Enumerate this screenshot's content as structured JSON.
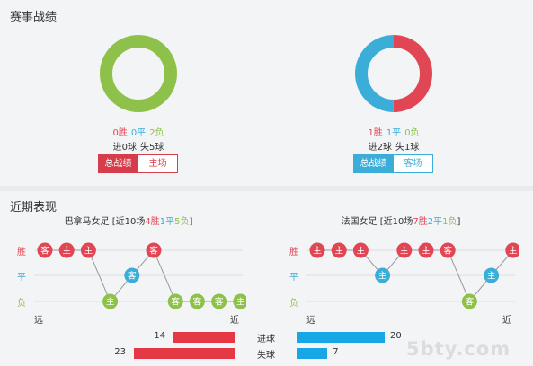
{
  "colors": {
    "win": "#e04654",
    "draw": "#3aadd9",
    "loss": "#8dc149",
    "bar_red": "#e63744",
    "bar_blue": "#18a7e6"
  },
  "record": {
    "title": "赛事战绩",
    "left": {
      "win": "0胜",
      "draw": "0平",
      "loss": "2负",
      "goals_for": "进0球",
      "goals_against": "失5球",
      "tab_all": "总战绩",
      "tab_home": "主场",
      "donut": [
        {
          "label": "胜",
          "value": 0
        },
        {
          "label": "平",
          "value": 0
        },
        {
          "label": "负",
          "value": 2
        }
      ]
    },
    "right": {
      "win": "1胜",
      "draw": "1平",
      "loss": "0负",
      "goals_for": "进2球",
      "goals_against": "失1球",
      "tab_all": "总战绩",
      "tab_away": "客场",
      "donut": [
        {
          "label": "胜",
          "value": 1
        },
        {
          "label": "平",
          "value": 1
        },
        {
          "label": "负",
          "value": 0
        }
      ]
    }
  },
  "recent": {
    "title": "近期表现",
    "row_labels": {
      "win": "胜",
      "draw": "平",
      "loss": "负"
    },
    "axis": {
      "far": "远",
      "near": "近"
    },
    "left": {
      "team": "巴拿马女足",
      "prefix": "[近10场",
      "w": "4胜",
      "d": "1平",
      "l": "5负",
      "suffix": "]",
      "results": [
        {
          "r": "W",
          "v": "客"
        },
        {
          "r": "W",
          "v": "主"
        },
        {
          "r": "W",
          "v": "主"
        },
        {
          "r": "L",
          "v": "主"
        },
        {
          "r": "D",
          "v": "客"
        },
        {
          "r": "W",
          "v": "客"
        },
        {
          "r": "L",
          "v": "客"
        },
        {
          "r": "L",
          "v": "客"
        },
        {
          "r": "L",
          "v": "客"
        },
        {
          "r": "L",
          "v": "主"
        }
      ]
    },
    "right": {
      "team": "法国女足",
      "prefix": "[近10场",
      "w": "7胜",
      "d": "2平",
      "l": "1负",
      "suffix": "]",
      "results": [
        {
          "r": "W",
          "v": "主"
        },
        {
          "r": "W",
          "v": "主"
        },
        {
          "r": "W",
          "v": "主"
        },
        {
          "r": "D",
          "v": "主"
        },
        {
          "r": "W",
          "v": "主"
        },
        {
          "r": "W",
          "v": "主"
        },
        {
          "r": "W",
          "v": "客"
        },
        {
          "r": "L",
          "v": "客"
        },
        {
          "r": "D",
          "v": "主"
        },
        {
          "r": "W",
          "v": "主"
        }
      ]
    }
  },
  "goals": {
    "scored_label": "进球",
    "conceded_label": "失球",
    "left_scored": 14,
    "left_conceded": 23,
    "right_scored": 20,
    "right_conceded": 7
  },
  "watermark": "5bty.com"
}
